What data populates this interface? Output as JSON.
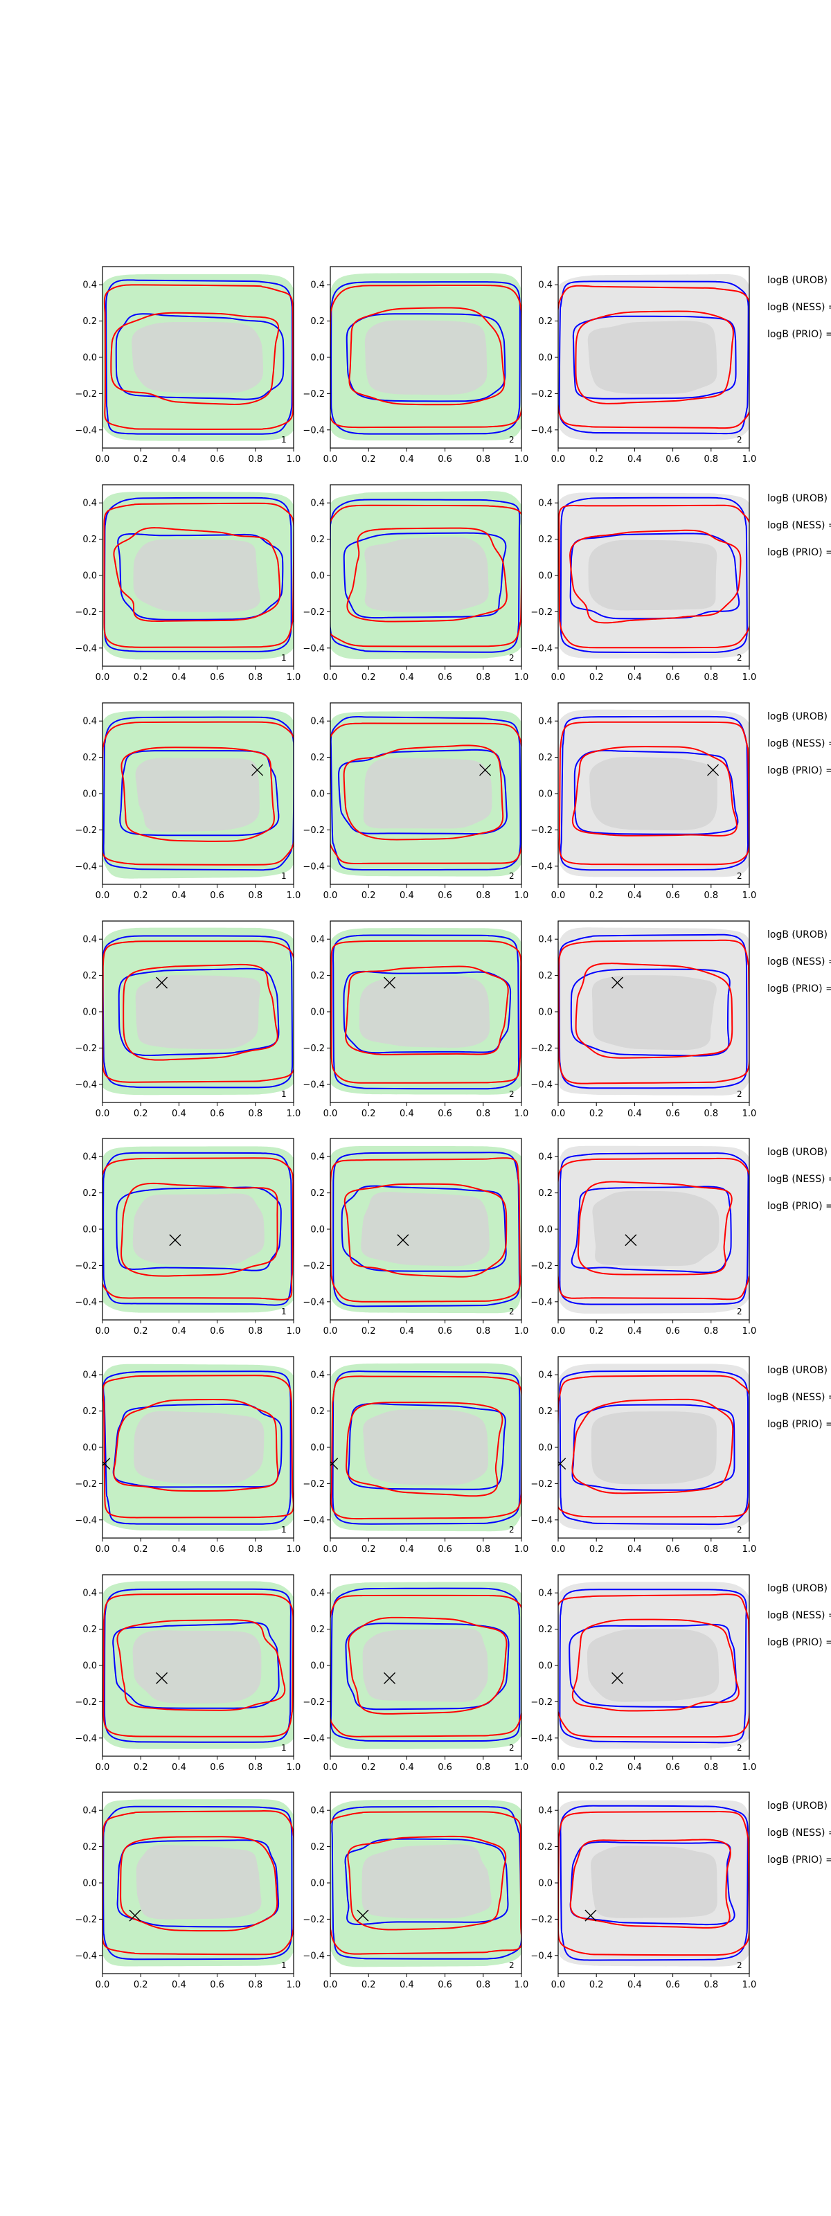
{
  "colors": {
    "green_fill": "#c5efc5",
    "gray_fill": "#e6e6e6",
    "inner_fill": "#d4d4d4",
    "blue_line": "#0000ff",
    "red_line": "#ff0000",
    "marker": "#000000",
    "axes": "#000000"
  },
  "chart_data": {
    "type": "contour",
    "layout": {
      "rows": 8,
      "cols": 3
    },
    "xlim": [
      0.0,
      1.0
    ],
    "ylim": [
      -0.5,
      0.5
    ],
    "xticks": [
      "0.0",
      "0.2",
      "0.4",
      "0.6",
      "0.8",
      "1.0"
    ],
    "xtick_values": [
      0.0,
      0.2,
      0.4,
      0.6,
      0.8,
      1.0
    ],
    "yticks": [
      "0.4",
      "0.2",
      "0.0",
      "−0.2",
      "−0.4"
    ],
    "ytick_values": [
      0.4,
      0.2,
      0.0,
      -0.2,
      -0.4
    ],
    "row_labels": [
      "logB (UROB) =",
      "logB (NESS) =",
      "logB (PRIO) ="
    ],
    "panel_corner_labels": [
      "1",
      "2",
      "2"
    ],
    "rows": [
      {
        "marker": null
      },
      {
        "marker": null
      },
      {
        "marker": [
          0.81,
          0.13
        ]
      },
      {
        "marker": [
          0.31,
          0.16
        ]
      },
      {
        "marker": [
          0.38,
          -0.06
        ]
      },
      {
        "marker": [
          0.01,
          -0.09
        ]
      },
      {
        "marker": [
          0.31,
          -0.07
        ]
      },
      {
        "marker": [
          0.17,
          -0.18
        ]
      }
    ]
  }
}
